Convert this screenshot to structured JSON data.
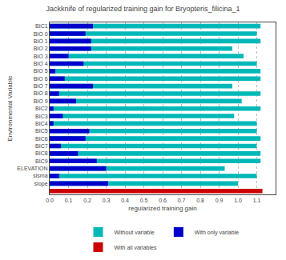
{
  "chart_data": {
    "type": "bar",
    "orientation": "horizontal",
    "stacked": false,
    "title": "Jackknife of regularized training gain for Bryopteris_filicina_1",
    "x_label": "regularized training gain",
    "y_label": "Environmental Variable",
    "categories": [
      "BIC1",
      "BIO 0",
      "BIO 1",
      "BIO 2",
      "BIO 3",
      "BIO 4",
      "BIO 5",
      "BIO 6",
      "BIO 7",
      "BIO 8",
      "BIO 9",
      "BIC2",
      "BIC3",
      "BIC4",
      "BIC5",
      "BIC6",
      "BIC7",
      "BIC8",
      "BIC9",
      "ELEVATION",
      "sisma",
      "slope",
      null
    ],
    "series": [
      {
        "name": "Without variable",
        "color": "#00b8b8",
        "values": [
          1.12,
          1.1,
          1.12,
          0.97,
          1.03,
          1.1,
          1.12,
          1.12,
          0.97,
          1.12,
          1.02,
          1.12,
          0.98,
          1.1,
          1.1,
          1.12,
          1.1,
          1.12,
          1.12,
          0.93,
          1.1,
          1.0,
          null
        ]
      },
      {
        "name": "With only variable",
        "color": "#0000cc",
        "values": [
          0.23,
          0.19,
          0.22,
          0.22,
          0.1,
          0.18,
          0.03,
          0.08,
          0.23,
          0.05,
          0.14,
          0.02,
          0.07,
          0.02,
          0.21,
          0.19,
          0.06,
          0.15,
          0.25,
          0.3,
          0.05,
          0.31,
          null
        ]
      },
      {
        "name": "With all variables",
        "color": "#cc0000",
        "values": [
          null,
          null,
          null,
          null,
          null,
          null,
          null,
          null,
          null,
          null,
          null,
          null,
          null,
          null,
          null,
          null,
          null,
          null,
          null,
          null,
          null,
          null,
          1.13
        ]
      }
    ],
    "xlim": [
      0,
      1.2
    ],
    "xticks": [
      {
        "value": 0,
        "label": "0.0"
      },
      0.1,
      0.2,
      0.3,
      0.4,
      0.5,
      0.6,
      0.7,
      0.8,
      0.9,
      {
        "value": 1,
        "label": "1.0"
      },
      1.1
    ],
    "grid": true,
    "legend": "bottom"
  }
}
